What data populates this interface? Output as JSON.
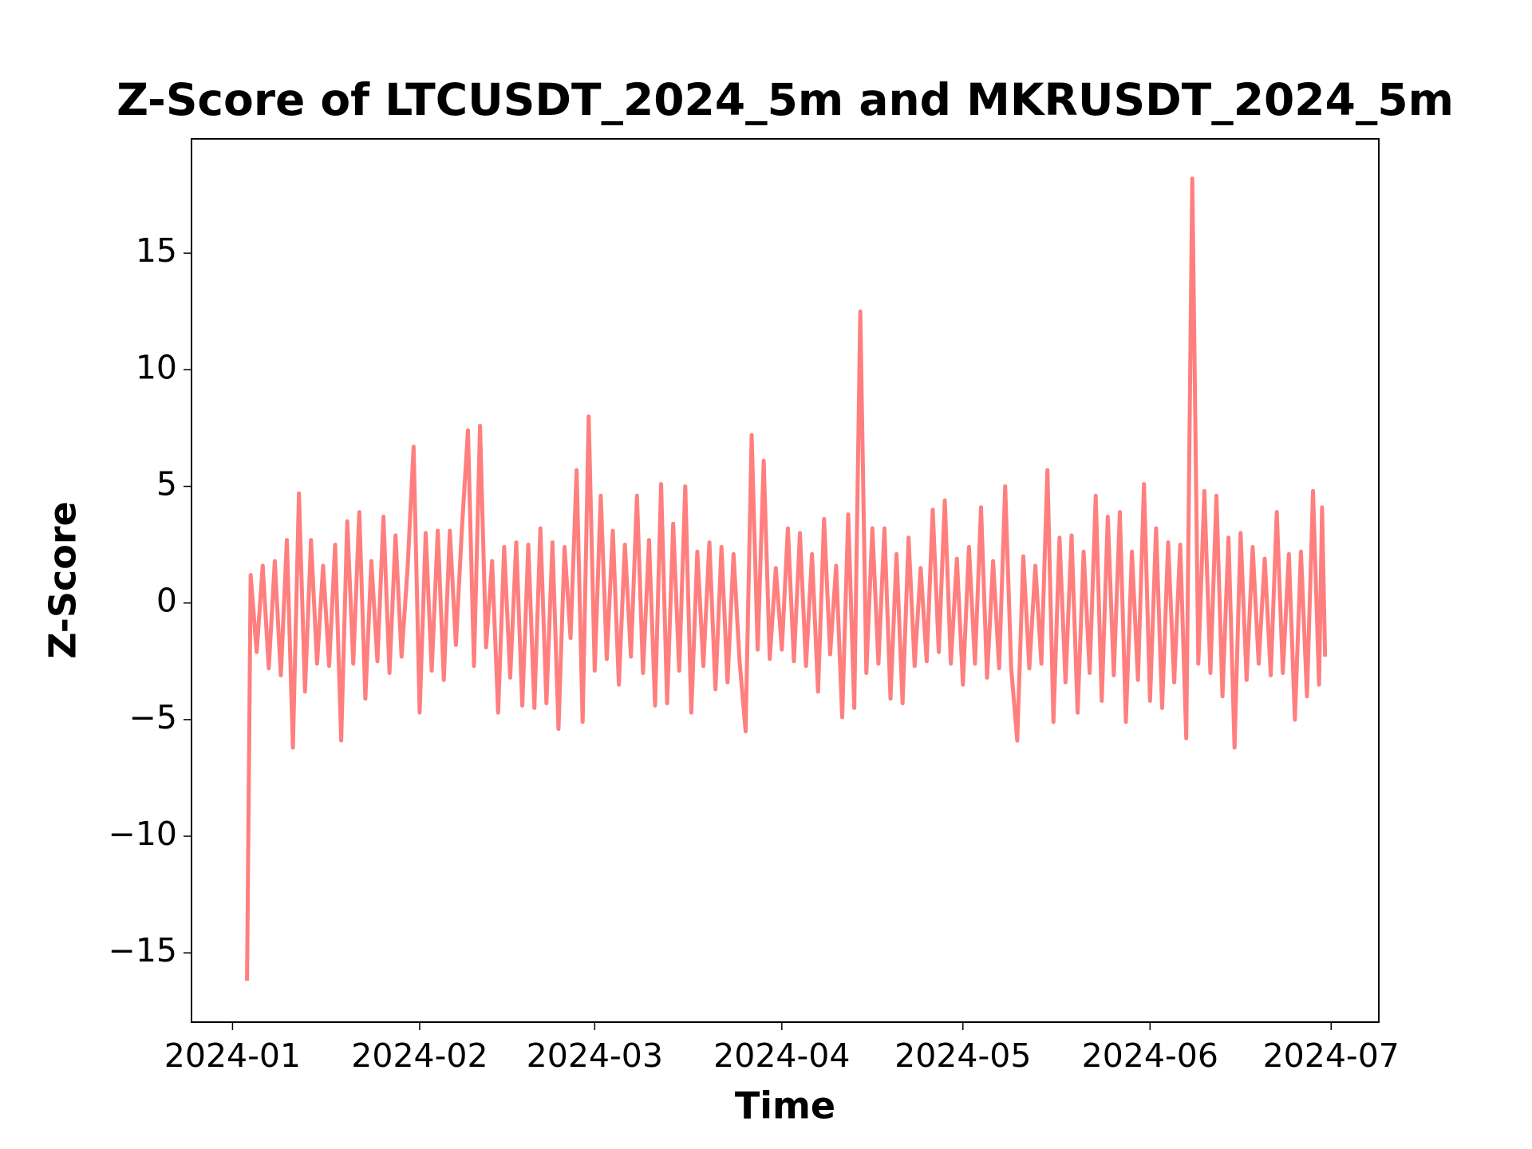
{
  "chart_data": {
    "type": "line",
    "title": "Z-Score of LTCUSDT_2024_5m and MKRUSDT_2024_5m",
    "x_label": "Time",
    "y_label": "Z-Score",
    "x": [
      2.4,
      3,
      4,
      5,
      6,
      7,
      8,
      9,
      10,
      11,
      12,
      13,
      14,
      15,
      16,
      17,
      18,
      19,
      20,
      21,
      22,
      23,
      24,
      25,
      26,
      27,
      28,
      29,
      30,
      31,
      32,
      33,
      34,
      35,
      36,
      37,
      38,
      39,
      40,
      41,
      42,
      43,
      44,
      45,
      46,
      47,
      48,
      49,
      50,
      51,
      52,
      53,
      54,
      55,
      56,
      57,
      58,
      59,
      60,
      61,
      62,
      63,
      64,
      65,
      66,
      67,
      68,
      69,
      70,
      71,
      72,
      73,
      74,
      75,
      76,
      77,
      78,
      79,
      80,
      81,
      82,
      83,
      84,
      85,
      86,
      87,
      88,
      89,
      90,
      91,
      92,
      93,
      94,
      95,
      96,
      97,
      98,
      99,
      100,
      101,
      102,
      103,
      104,
      105,
      106,
      107,
      108,
      109,
      110,
      111,
      112,
      113,
      114,
      115,
      116,
      117,
      118,
      119,
      120,
      121,
      122,
      123,
      124,
      125,
      126,
      127,
      128,
      129,
      130,
      131,
      132,
      133,
      134,
      135,
      136,
      137,
      138,
      139,
      140,
      141,
      142,
      143,
      144,
      145,
      146,
      147,
      148,
      149,
      150,
      151,
      152,
      153,
      154,
      155,
      156,
      157,
      158,
      159,
      160,
      161,
      162,
      163,
      164,
      165,
      166,
      167,
      168,
      169,
      170,
      171,
      172,
      173,
      174,
      175,
      176,
      177,
      178,
      179,
      180,
      180.5,
      181
    ],
    "series": [
      {
        "name": "Z-Score",
        "color": "#ff7f7f",
        "values": [
          -16.2,
          1.2,
          -2.1,
          1.6,
          -2.8,
          1.8,
          -3.1,
          2.7,
          -6.2,
          4.7,
          -3.8,
          2.7,
          -2.6,
          1.6,
          -2.7,
          2.5,
          -5.9,
          3.5,
          -2.6,
          3.9,
          -4.1,
          1.8,
          -2.5,
          3.7,
          -3.0,
          2.9,
          -2.3,
          1.5,
          6.7,
          -4.7,
          3.0,
          -2.9,
          3.1,
          -3.3,
          3.1,
          -1.8,
          3.2,
          7.4,
          -2.7,
          7.6,
          -1.9,
          1.8,
          -4.7,
          2.4,
          -3.2,
          2.6,
          -4.4,
          2.5,
          -4.5,
          3.2,
          -4.3,
          2.6,
          -5.4,
          2.4,
          -1.5,
          5.7,
          -5.1,
          8.0,
          -2.9,
          4.6,
          -2.4,
          3.1,
          -3.5,
          2.5,
          -2.3,
          4.6,
          -3.0,
          2.7,
          -4.4,
          5.1,
          -4.3,
          3.4,
          -2.9,
          5.0,
          -4.7,
          2.2,
          -2.7,
          2.6,
          -3.7,
          2.4,
          -3.4,
          2.1,
          -2.5,
          -5.5,
          7.2,
          -2.0,
          6.1,
          -2.4,
          1.5,
          -2.0,
          3.2,
          -2.5,
          3.0,
          -2.7,
          2.1,
          -3.8,
          3.6,
          -2.2,
          1.6,
          -4.9,
          3.8,
          -4.5,
          12.5,
          -3.0,
          3.2,
          -2.6,
          3.2,
          -4.1,
          2.1,
          -4.3,
          2.8,
          -2.7,
          1.5,
          -2.5,
          4.0,
          -2.1,
          4.4,
          -2.6,
          1.9,
          -3.5,
          2.4,
          -2.6,
          4.1,
          -3.2,
          1.8,
          -2.8,
          5.0,
          -2.8,
          -5.9,
          2.0,
          -2.8,
          1.6,
          -2.6,
          5.7,
          -5.1,
          2.8,
          -3.4,
          2.9,
          -4.7,
          2.2,
          -3.0,
          4.6,
          -4.2,
          3.7,
          -3.1,
          3.9,
          -5.1,
          2.2,
          -3.3,
          5.1,
          -4.2,
          3.2,
          -4.5,
          2.6,
          -3.4,
          2.5,
          -5.8,
          18.2,
          -2.6,
          4.8,
          -3.0,
          4.6,
          -4.0,
          2.8,
          -6.2,
          3.0,
          -3.3,
          2.4,
          -2.6,
          1.9,
          -3.1,
          3.9,
          -3.0,
          2.1,
          -5.0,
          2.2,
          -4.0,
          4.8,
          -3.5,
          4.1,
          -2.3
        ]
      }
    ],
    "xlim": [
      -6.8,
      189.9
    ],
    "xticks": [
      {
        "value": 0,
        "label": "2024-01"
      },
      {
        "value": 31,
        "label": "2024-02"
      },
      {
        "value": 60,
        "label": "2024-03"
      },
      {
        "value": 91,
        "label": "2024-04"
      },
      {
        "value": 121,
        "label": "2024-05"
      },
      {
        "value": 152,
        "label": "2024-06"
      },
      {
        "value": 182,
        "label": "2024-07"
      }
    ],
    "ylim": [
      -17.97,
      19.9
    ],
    "yticks": [
      {
        "value": -15,
        "label": "−15"
      },
      {
        "value": -10,
        "label": "−10"
      },
      {
        "value": -5,
        "label": "−5"
      },
      0,
      5,
      10,
      15
    ],
    "grid": false
  }
}
